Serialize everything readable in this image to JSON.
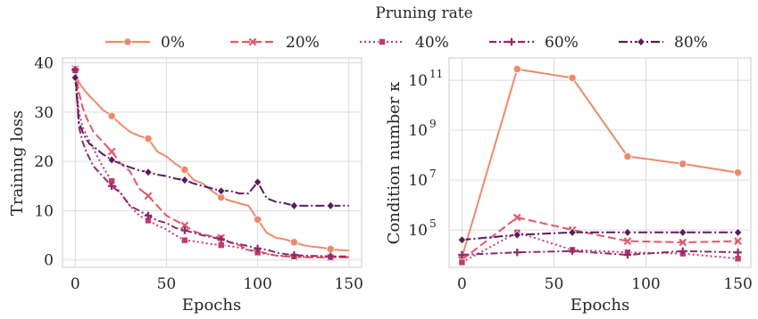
{
  "legend": {
    "title": "Pruning rate",
    "placement": "top-center"
  },
  "series_style": [
    {
      "name": "0%",
      "color": "#ee8a6c",
      "dash": "",
      "marker": "circle"
    },
    {
      "name": "20%",
      "color": "#e05a6a",
      "dash": "9,4",
      "marker": "x"
    },
    {
      "name": "40%",
      "color": "#c23a6e",
      "dash": "2,3",
      "marker": "square"
    },
    {
      "name": "60%",
      "color": "#8e2a6b",
      "dash": "8,3,2,3",
      "marker": "plus"
    },
    {
      "name": "80%",
      "color": "#5a1a5e",
      "dash": "10,3,2,3",
      "marker": "diamond"
    }
  ],
  "chart_data": [
    {
      "type": "line",
      "title": "",
      "xlabel": "Epochs",
      "ylabel": "Training loss",
      "xlim": [
        -7,
        157
      ],
      "ylim": [
        -1.5,
        41
      ],
      "yscale": "linear",
      "grid": true,
      "xticks": [
        0,
        50,
        100,
        150
      ],
      "yticks": [
        0,
        10,
        20,
        30,
        40
      ],
      "x": [
        0,
        2,
        4,
        6,
        8,
        10,
        15,
        20,
        25,
        30,
        35,
        40,
        45,
        50,
        55,
        60,
        65,
        70,
        75,
        80,
        85,
        90,
        95,
        100,
        105,
        110,
        115,
        120,
        125,
        130,
        135,
        140,
        145,
        150
      ],
      "markers_at": [
        0,
        20,
        40,
        60,
        80,
        100,
        120,
        140
      ],
      "series": [
        {
          "name": "0%",
          "values": [
            38.5,
            36.0,
            35.0,
            34.0,
            33.2,
            32.5,
            30.5,
            29.2,
            27.5,
            26.0,
            25.2,
            24.6,
            22.0,
            21.0,
            19.5,
            18.3,
            16.2,
            15.5,
            14.0,
            12.7,
            12.0,
            11.5,
            11.0,
            8.2,
            5.5,
            4.5,
            4.2,
            3.6,
            3.0,
            2.7,
            2.5,
            2.2,
            2.0,
            1.9
          ]
        },
        {
          "name": "20%",
          "values": [
            38.7,
            34.0,
            31.0,
            29.0,
            27.5,
            26.0,
            24.0,
            22.0,
            19.5,
            18.0,
            14.5,
            13.0,
            11.0,
            9.0,
            8.0,
            7.0,
            5.8,
            5.2,
            4.8,
            4.5,
            3.5,
            3.0,
            2.0,
            1.8,
            1.3,
            0.9,
            0.7,
            0.6,
            0.55,
            0.5,
            0.5,
            0.5,
            0.5,
            0.5
          ]
        },
        {
          "name": "40%",
          "values": [
            38.5,
            30.0,
            27.0,
            25.5,
            24.0,
            22.5,
            19.0,
            16.0,
            13.5,
            11.0,
            9.0,
            8.0,
            7.0,
            6.2,
            5.0,
            4.0,
            3.8,
            3.5,
            3.2,
            3.0,
            2.8,
            2.5,
            2.0,
            1.5,
            1.2,
            0.9,
            0.8,
            0.7,
            0.6,
            0.6,
            0.6,
            0.6,
            0.6,
            0.6
          ]
        },
        {
          "name": "60%",
          "values": [
            38.6,
            27.0,
            24.0,
            22.0,
            20.5,
            19.0,
            17.0,
            15.0,
            13.5,
            11.0,
            10.0,
            9.0,
            8.0,
            7.5,
            6.5,
            6.0,
            5.5,
            5.0,
            4.6,
            4.2,
            3.6,
            3.2,
            2.8,
            2.3,
            2.1,
            1.5,
            1.2,
            1.0,
            0.9,
            0.8,
            0.8,
            0.7,
            0.7,
            0.7
          ]
        },
        {
          "name": "80%",
          "values": [
            37.0,
            28.0,
            26.0,
            24.5,
            23.5,
            23.0,
            21.5,
            20.3,
            19.5,
            18.8,
            18.2,
            17.8,
            17.3,
            17.0,
            16.5,
            16.2,
            15.5,
            15.0,
            14.5,
            14.0,
            14.0,
            13.5,
            13.5,
            15.8,
            12.5,
            11.8,
            11.5,
            11.0,
            11.0,
            11.0,
            11.0,
            11.0,
            11.0,
            11.0
          ]
        }
      ]
    },
    {
      "type": "line",
      "title": "",
      "xlabel": "Epochs",
      "ylabel": "Condition number κ",
      "xlim": [
        -7,
        157
      ],
      "ylim": [
        3.5,
        11.9
      ],
      "yscale": "log",
      "grid": true,
      "xticks": [
        0,
        50,
        100,
        150
      ],
      "yticks": [
        5,
        7,
        9,
        11
      ],
      "ytick_labels": [
        "10",
        "10",
        "10",
        "10"
      ],
      "ytick_exponents": [
        "5",
        "7",
        "9",
        "11"
      ],
      "x": [
        0,
        30,
        60,
        90,
        120,
        150
      ],
      "series": [
        {
          "name": "0%",
          "values": [
            3.9,
            11.45,
            11.1,
            7.95,
            7.65,
            7.3
          ]
        },
        {
          "name": "20%",
          "values": [
            3.8,
            5.5,
            5.0,
            4.55,
            4.5,
            4.55
          ]
        },
        {
          "name": "40%",
          "values": [
            3.7,
            4.9,
            4.2,
            4.1,
            4.05,
            3.85
          ]
        },
        {
          "name": "60%",
          "values": [
            4.0,
            4.1,
            4.15,
            4.0,
            4.15,
            4.1
          ]
        },
        {
          "name": "80%",
          "values": [
            4.6,
            4.8,
            4.9,
            4.9,
            4.9,
            4.9
          ]
        }
      ]
    }
  ]
}
